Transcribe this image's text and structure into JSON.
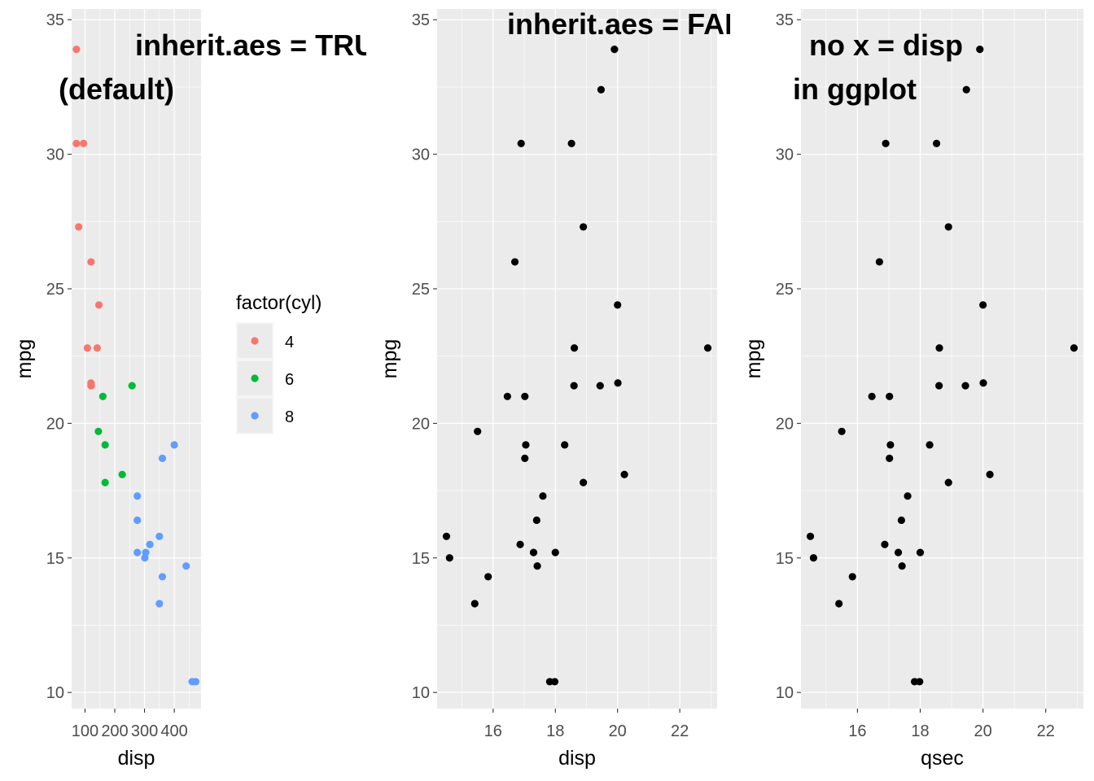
{
  "chart_data": [
    {
      "type": "scatter",
      "title": "inherit.aes = TRUE (default)",
      "title_lines": [
        "inherit.aes = TRUE",
        "(default)"
      ],
      "xlabel": "disp",
      "ylabel": "mpg",
      "xlim": [
        55,
        490
      ],
      "ylim": [
        9.4,
        35.4
      ],
      "x_ticks": [
        100,
        200,
        300,
        400
      ],
      "y_ticks": [
        10,
        15,
        20,
        25,
        30,
        35
      ],
      "legend": {
        "title": "factor(cyl)",
        "position": "right",
        "entries": [
          {
            "label": "4",
            "color": "#F8766D"
          },
          {
            "label": "6",
            "color": "#00BA38"
          },
          {
            "label": "8",
            "color": "#619CFF"
          }
        ]
      },
      "grid": true,
      "series": [
        {
          "name": "4",
          "color": "#F8766D",
          "points": [
            [
              71.1,
              33.9
            ],
            [
              71.1,
              30.4
            ],
            [
              95.1,
              30.4
            ],
            [
              78.7,
              27.3
            ],
            [
              120.3,
              26.0
            ],
            [
              146.7,
              24.4
            ],
            [
              140.8,
              22.8
            ],
            [
              108.0,
              22.8
            ],
            [
              120.1,
              21.5
            ],
            [
              121.0,
              21.4
            ],
            [
              120.1,
              21.4
            ]
          ]
        },
        {
          "name": "6",
          "color": "#00BA38",
          "points": [
            [
              258.0,
              21.4
            ],
            [
              160.0,
              21.0
            ],
            [
              145.0,
              19.7
            ],
            [
              167.6,
              19.2
            ],
            [
              225.0,
              18.1
            ],
            [
              167.6,
              17.8
            ]
          ]
        },
        {
          "name": "8",
          "color": "#619CFF",
          "points": [
            [
              400.0,
              19.2
            ],
            [
              360.0,
              18.7
            ],
            [
              275.8,
              17.3
            ],
            [
              275.8,
              16.4
            ],
            [
              318.0,
              15.5
            ],
            [
              350.0,
              15.8
            ],
            [
              304.0,
              15.2
            ],
            [
              275.8,
              15.2
            ],
            [
              301.0,
              15.0
            ],
            [
              440.0,
              14.7
            ],
            [
              360.0,
              14.3
            ],
            [
              350.0,
              13.3
            ],
            [
              472.0,
              10.4
            ],
            [
              460.0,
              10.4
            ]
          ]
        }
      ]
    },
    {
      "type": "scatter",
      "title": "inherit.aes = FALSE",
      "xlabel": "disp",
      "ylabel": "mpg",
      "xlim": [
        14.2,
        23.2
      ],
      "ylim": [
        9.4,
        35.4
      ],
      "x_ticks": [
        16,
        18,
        20,
        22
      ],
      "y_ticks": [
        10,
        15,
        20,
        25,
        30,
        35
      ],
      "grid": true,
      "series": [
        {
          "color": "#000000",
          "points": [
            [
              16.46,
              21.0
            ],
            [
              17.02,
              21.0
            ],
            [
              18.61,
              22.8
            ],
            [
              19.44,
              21.4
            ],
            [
              17.02,
              18.7
            ],
            [
              20.22,
              18.1
            ],
            [
              15.84,
              14.3
            ],
            [
              20.0,
              24.4
            ],
            [
              22.9,
              22.8
            ],
            [
              18.3,
              19.2
            ],
            [
              18.9,
              17.8
            ],
            [
              17.4,
              16.4
            ],
            [
              17.6,
              17.3
            ],
            [
              18.0,
              15.2
            ],
            [
              17.98,
              10.4
            ],
            [
              17.82,
              10.4
            ],
            [
              17.42,
              14.7
            ],
            [
              19.47,
              32.4
            ],
            [
              18.52,
              30.4
            ],
            [
              19.9,
              33.9
            ],
            [
              20.01,
              21.5
            ],
            [
              16.87,
              15.5
            ],
            [
              17.3,
              15.2
            ],
            [
              15.41,
              13.3
            ],
            [
              17.05,
              19.2
            ],
            [
              18.9,
              27.3
            ],
            [
              16.7,
              26.0
            ],
            [
              16.9,
              30.4
            ],
            [
              14.5,
              15.8
            ],
            [
              15.5,
              19.7
            ],
            [
              14.6,
              15.0
            ],
            [
              18.6,
              21.4
            ]
          ]
        }
      ]
    },
    {
      "type": "scatter",
      "title": "no x = disp in ggplot",
      "title_lines": [
        "no x = disp",
        "in ggplot"
      ],
      "xlabel": "qsec",
      "ylabel": "mpg",
      "xlim": [
        14.2,
        23.2
      ],
      "ylim": [
        9.4,
        35.4
      ],
      "x_ticks": [
        16,
        18,
        20,
        22
      ],
      "y_ticks": [
        10,
        15,
        20,
        25,
        30,
        35
      ],
      "grid": true,
      "series": [
        {
          "color": "#000000",
          "points": [
            [
              16.46,
              21.0
            ],
            [
              17.02,
              21.0
            ],
            [
              18.61,
              22.8
            ],
            [
              19.44,
              21.4
            ],
            [
              17.02,
              18.7
            ],
            [
              20.22,
              18.1
            ],
            [
              15.84,
              14.3
            ],
            [
              20.0,
              24.4
            ],
            [
              22.9,
              22.8
            ],
            [
              18.3,
              19.2
            ],
            [
              18.9,
              17.8
            ],
            [
              17.4,
              16.4
            ],
            [
              17.6,
              17.3
            ],
            [
              18.0,
              15.2
            ],
            [
              17.98,
              10.4
            ],
            [
              17.82,
              10.4
            ],
            [
              17.42,
              14.7
            ],
            [
              19.47,
              32.4
            ],
            [
              18.52,
              30.4
            ],
            [
              19.9,
              33.9
            ],
            [
              20.01,
              21.5
            ],
            [
              16.87,
              15.5
            ],
            [
              17.3,
              15.2
            ],
            [
              15.41,
              13.3
            ],
            [
              17.05,
              19.2
            ],
            [
              18.9,
              27.3
            ],
            [
              16.7,
              26.0
            ],
            [
              16.9,
              30.4
            ],
            [
              14.5,
              15.8
            ],
            [
              15.5,
              19.7
            ],
            [
              14.6,
              15.0
            ],
            [
              18.6,
              21.4
            ]
          ]
        }
      ]
    }
  ]
}
